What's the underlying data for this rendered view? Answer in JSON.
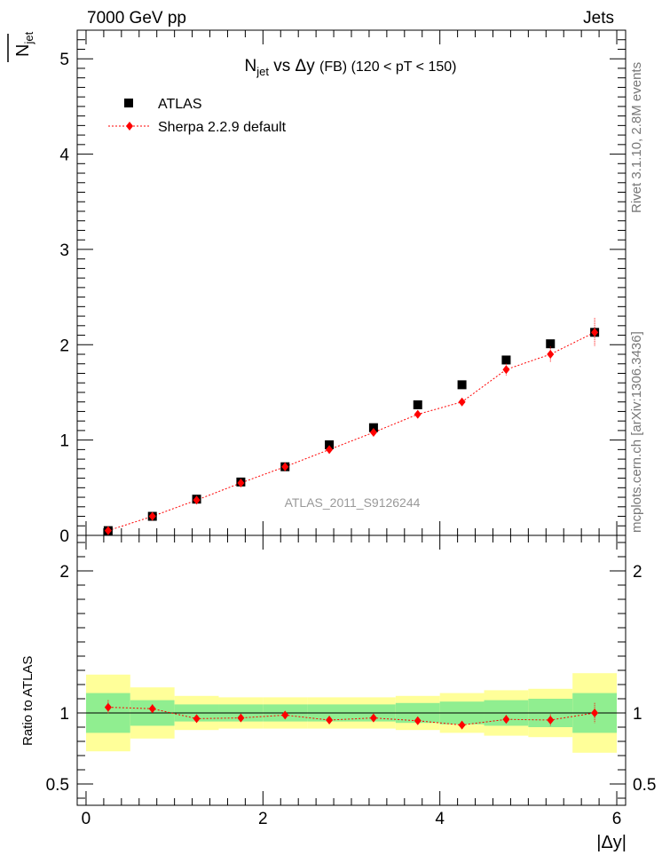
{
  "header": {
    "left": "7000 GeV pp",
    "right": "Jets"
  },
  "side_text": {
    "rivet": "Rivet 3.1.10,  2.8M events",
    "mcplots": "mcplots.cern.ch [arXiv:1306.3436]"
  },
  "watermark": "ATLAS_2011_S9126244",
  "chart_data": [
    {
      "type": "scatter",
      "title": "N_jet vs Δy (FB) (120 < pT < 150)",
      "ylabel": "N_jet",
      "xlabel": "|Δy|",
      "xlim": [
        -0.1,
        6.1
      ],
      "ylim": [
        0,
        5.3
      ],
      "yticks": [
        0,
        1,
        2,
        3,
        4,
        5
      ],
      "xticks": [
        0,
        2,
        4,
        6
      ],
      "legend": {
        "placement": "top-left",
        "entries": [
          "ATLAS",
          "Sherpa 2.2.9 default"
        ]
      },
      "x": [
        0.25,
        0.75,
        1.25,
        1.75,
        2.25,
        2.75,
        3.25,
        3.75,
        4.25,
        4.75,
        5.25,
        5.75
      ],
      "series": [
        {
          "name": "ATLAS",
          "color": "#000000",
          "marker": "square",
          "values": [
            0.05,
            0.2,
            0.38,
            0.56,
            0.72,
            0.95,
            1.13,
            1.37,
            1.58,
            1.84,
            2.01,
            2.13
          ]
        },
        {
          "name": "Sherpa 2.2.9 default",
          "color": "#ff0000",
          "marker": "diamond",
          "values": [
            0.05,
            0.2,
            0.37,
            0.55,
            0.72,
            0.9,
            1.08,
            1.27,
            1.4,
            1.74,
            1.9,
            2.13
          ],
          "errors": [
            0.005,
            0.01,
            0.015,
            0.02,
            0.02,
            0.03,
            0.03,
            0.04,
            0.04,
            0.06,
            0.08,
            0.15
          ]
        }
      ]
    },
    {
      "type": "scatter",
      "ylabel": "Ratio to ATLAS",
      "xlabel": "|Δy|",
      "xlim": [
        -0.1,
        6.1
      ],
      "ylim": [
        0.35,
        2.25
      ],
      "yticks": [
        0.5,
        1,
        2
      ],
      "xticks": [
        0,
        2,
        4,
        6
      ],
      "x": [
        0.25,
        0.75,
        1.25,
        1.75,
        2.25,
        2.75,
        3.25,
        3.75,
        4.25,
        4.75,
        5.25,
        5.75
      ],
      "bands": {
        "edges": [
          0,
          0.5,
          1,
          1.5,
          2,
          2.5,
          3,
          3.5,
          4,
          4.5,
          5,
          5.5,
          6
        ],
        "inner_color": "#90ee90",
        "outer_color": "#ffff99",
        "inner": [
          0.14,
          0.09,
          0.06,
          0.06,
          0.06,
          0.06,
          0.06,
          0.07,
          0.08,
          0.09,
          0.1,
          0.14
        ],
        "outer": [
          0.27,
          0.18,
          0.12,
          0.11,
          0.11,
          0.11,
          0.11,
          0.12,
          0.14,
          0.16,
          0.17,
          0.28
        ]
      },
      "series": [
        {
          "name": "Sherpa 2.2.9 default",
          "color": "#ff0000",
          "marker": "diamond",
          "values": [
            1.04,
            1.03,
            0.96,
            0.965,
            0.985,
            0.95,
            0.965,
            0.945,
            0.915,
            0.955,
            0.95,
            1.0
          ],
          "errors": [
            0.05,
            0.03,
            0.02,
            0.02,
            0.02,
            0.02,
            0.02,
            0.02,
            0.02,
            0.03,
            0.04,
            0.07
          ]
        }
      ]
    }
  ]
}
